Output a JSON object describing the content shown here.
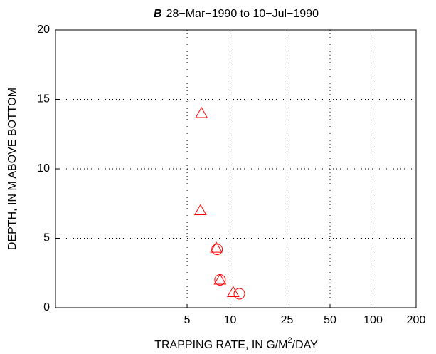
{
  "chart_data": {
    "type": "scatter",
    "title_label": "B",
    "title": "28−Mar−1990 to 10−Jul−1990",
    "xlabel": [
      "TRAPPING RATE, IN G/M",
      "2",
      "/DAY"
    ],
    "ylabel": "DEPTH, IN M ABOVE BOTTOM",
    "xscale": "log",
    "xlim": [
      0.6,
      200
    ],
    "xticks": [
      5,
      10,
      25,
      50,
      100,
      200
    ],
    "ylim": [
      0,
      20
    ],
    "yticks": [
      0,
      5,
      10,
      15,
      20
    ],
    "grid": true,
    "series": [
      {
        "marker": "triangle",
        "color": "#ff0000",
        "x": [
          6.3,
          6.2,
          8.0,
          8.5,
          10.5
        ],
        "values": [
          14,
          7,
          4.3,
          2.0,
          1.1
        ]
      },
      {
        "marker": "circle",
        "color": "#ff0000",
        "x": [
          8.1,
          8.5,
          11.6
        ],
        "values": [
          4.2,
          2.0,
          1.0
        ]
      }
    ]
  }
}
